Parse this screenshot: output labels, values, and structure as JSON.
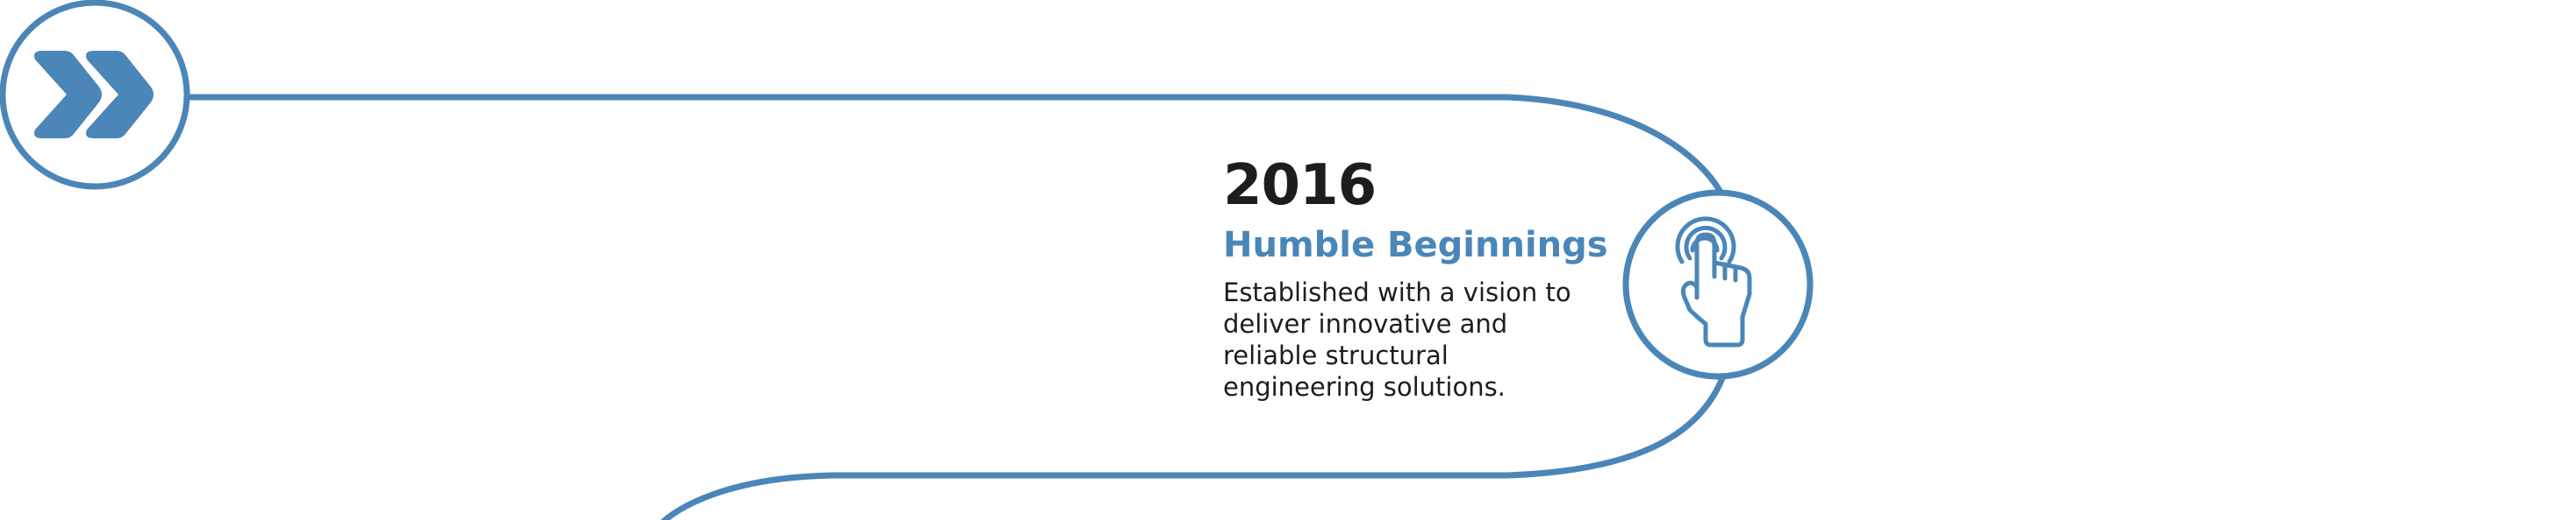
{
  "theme": {
    "accent": "#4a86b8",
    "text": "#1d1d1f",
    "background": "#ffffff"
  },
  "start_marker": {
    "icon": "double-chevron-right-icon"
  },
  "milestones": [
    {
      "year": "2016",
      "title": "Humble Beginnings",
      "description": "Established with a vision to deliver innovative and reliable structural engineering solutions.",
      "icon": "tap-hand-icon"
    }
  ]
}
